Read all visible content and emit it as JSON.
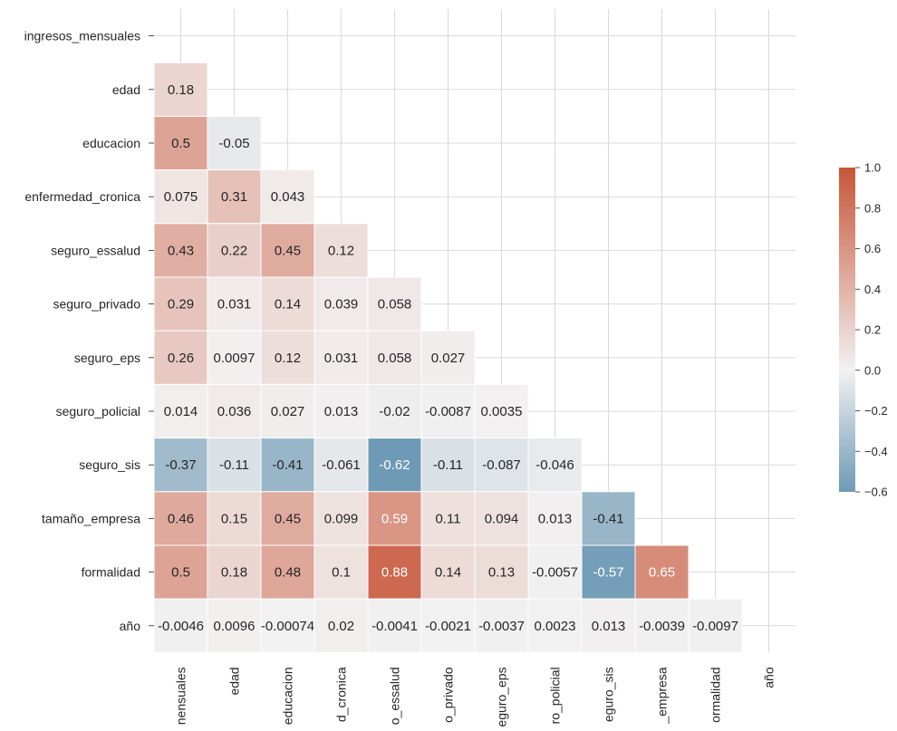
{
  "chart_data": {
    "type": "heatmap",
    "title": "",
    "xlabel": "",
    "ylabel": "",
    "mask": "upper-triangle-including-diagonal",
    "variables": [
      "ingresos_mensuales",
      "edad",
      "educacion",
      "enfermedad_cronica",
      "seguro_essalud",
      "seguro_privado",
      "seguro_eps",
      "seguro_policial",
      "seguro_sis",
      "tamaño_empresa",
      "formalidad",
      "año"
    ],
    "x_tick_labels_visible": [
      "nensuales",
      "edad",
      "educacion",
      "d_cronica",
      "o_essalud",
      "o_privado",
      "eguro_eps",
      "ro_policial",
      "eguro_sis",
      "_empresa",
      "ormalidad",
      "año"
    ],
    "matrix": [
      [],
      [
        "0.18"
      ],
      [
        "0.5",
        "-0.05"
      ],
      [
        "0.075",
        "0.31",
        "0.043"
      ],
      [
        "0.43",
        "0.22",
        "0.45",
        "0.12"
      ],
      [
        "0.29",
        "0.031",
        "0.14",
        "0.039",
        "0.058"
      ],
      [
        "0.26",
        "0.0097",
        "0.12",
        "0.031",
        "0.058",
        "0.027"
      ],
      [
        "0.014",
        "0.036",
        "0.027",
        "0.013",
        "-0.02",
        "-0.0087",
        "0.0035"
      ],
      [
        "-0.37",
        "-0.11",
        "-0.41",
        "-0.061",
        "-0.62",
        "-0.11",
        "-0.087",
        "-0.046"
      ],
      [
        "0.46",
        "0.15",
        "0.45",
        "0.099",
        "0.59",
        "0.11",
        "0.094",
        "0.013",
        "-0.41"
      ],
      [
        "0.5",
        "0.18",
        "0.48",
        "0.1",
        "0.88",
        "0.14",
        "0.13",
        "-0.0057",
        "-0.57",
        "0.65"
      ],
      [
        "-0.0046",
        "0.0096",
        "-0.00074",
        "0.02",
        "-0.0041",
        "-0.0021",
        "-0.0037",
        "0.0023",
        "0.013",
        "-0.0039",
        "-0.0097"
      ]
    ],
    "colorbar": {
      "vmin": -0.6,
      "vmax": 1.0,
      "ticks": [
        "1.0",
        "0.8",
        "0.6",
        "0.4",
        "0.2",
        "0.0",
        "−0.2",
        "−0.4",
        "−0.6"
      ],
      "tick_values": [
        1.0,
        0.8,
        0.6,
        0.4,
        0.2,
        0.0,
        -0.2,
        -0.4,
        -0.6
      ]
    },
    "colors": {
      "negative": "#6e9ab5",
      "neutral": "#f2f1f1",
      "positive": "#c8563a",
      "grid": "#d9d9d9",
      "text_dark": "#262626",
      "text_light": "#ffffff"
    }
  }
}
